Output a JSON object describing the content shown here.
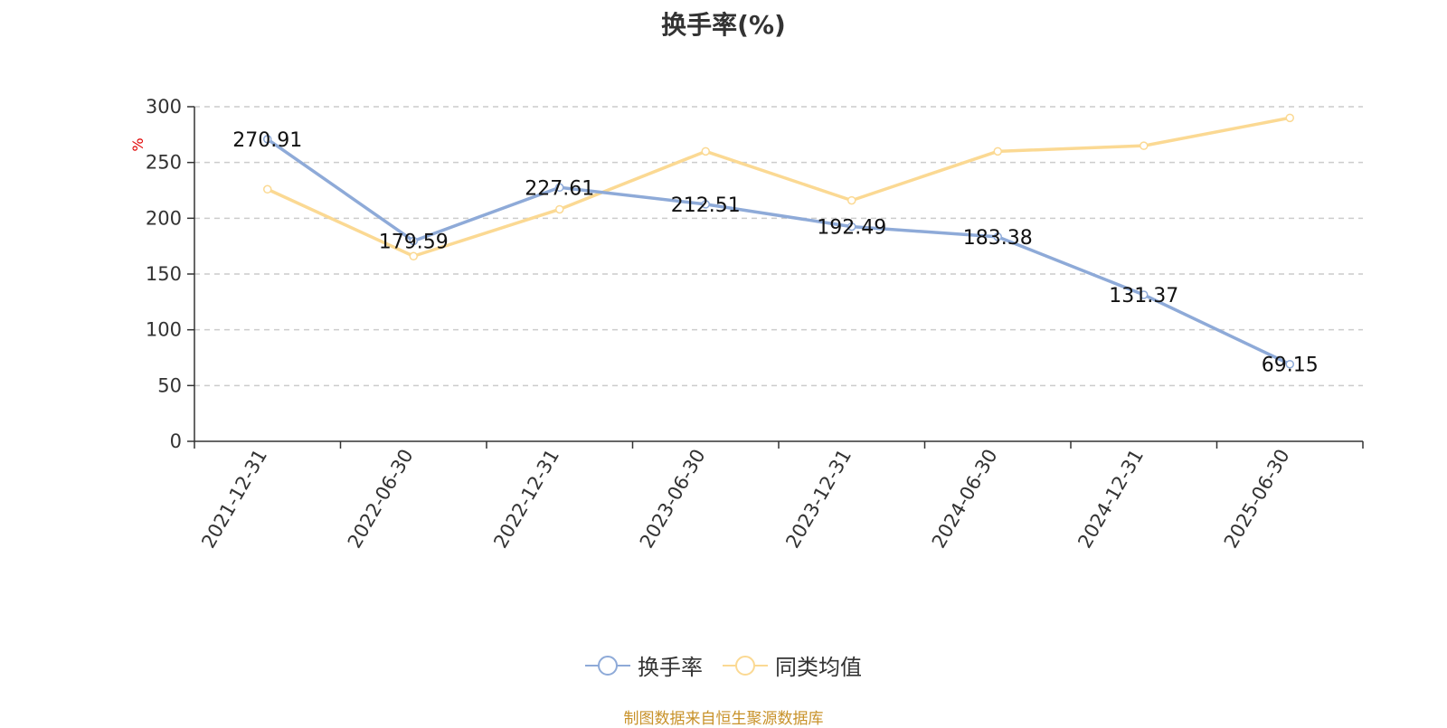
{
  "chart_data": {
    "type": "line",
    "title": "换手率(%)",
    "ylabel": "%",
    "ylim": [
      0,
      300
    ],
    "yticks": [
      0,
      50,
      100,
      150,
      200,
      250,
      300
    ],
    "categories": [
      "2021-12-31",
      "2022-06-30",
      "2022-12-31",
      "2023-06-30",
      "2023-12-31",
      "2024-06-30",
      "2024-12-31",
      "2025-06-30"
    ],
    "series": [
      {
        "name": "换手率",
        "color": "#8eaad8",
        "values": [
          270.91,
          179.59,
          227.61,
          212.51,
          192.49,
          183.38,
          131.37,
          69.15
        ],
        "labels": [
          "270.91",
          "179.59",
          "227.61",
          "212.51",
          "192.49",
          "183.38",
          "131.37",
          "69.15"
        ]
      },
      {
        "name": "同类均值",
        "color": "#fbd993",
        "values": [
          226,
          166,
          208,
          260,
          216,
          260,
          265,
          290
        ]
      }
    ],
    "grid": true,
    "legend_position": "bottom",
    "source_note": "制图数据来自恒生聚源数据库"
  }
}
